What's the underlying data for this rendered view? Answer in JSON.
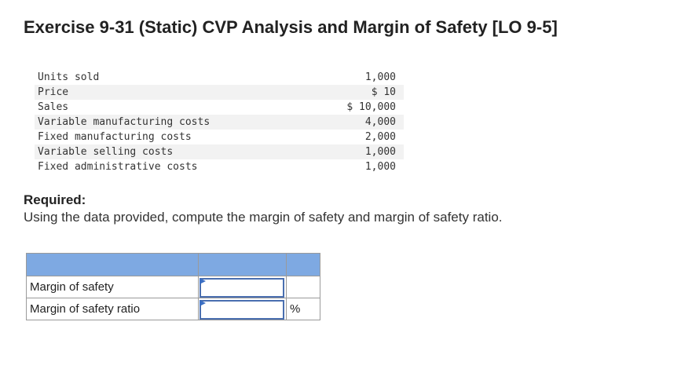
{
  "title": "Exercise 9-31 (Static) CVP Analysis and Margin of Safety [LO 9-5]",
  "data_rows": [
    {
      "label": "Units sold",
      "value": "1,000"
    },
    {
      "label": "Price",
      "value": "$ 10"
    },
    {
      "label": "Sales",
      "value": "$ 10,000"
    },
    {
      "label": "Variable manufacturing costs",
      "value": "4,000"
    },
    {
      "label": "Fixed manufacturing costs",
      "value": "2,000"
    },
    {
      "label": "Variable selling costs",
      "value": "1,000"
    },
    {
      "label": "Fixed administrative costs",
      "value": "1,000"
    }
  ],
  "required": {
    "heading": "Required:",
    "text": "Using the data provided, compute the margin of safety and margin of safety ratio."
  },
  "answer_table": {
    "header_color": "#7ea9e2",
    "rows": [
      {
        "label": "Margin of safety",
        "value": "",
        "unit": ""
      },
      {
        "label": "Margin of safety ratio",
        "value": "",
        "unit": "%"
      }
    ]
  }
}
